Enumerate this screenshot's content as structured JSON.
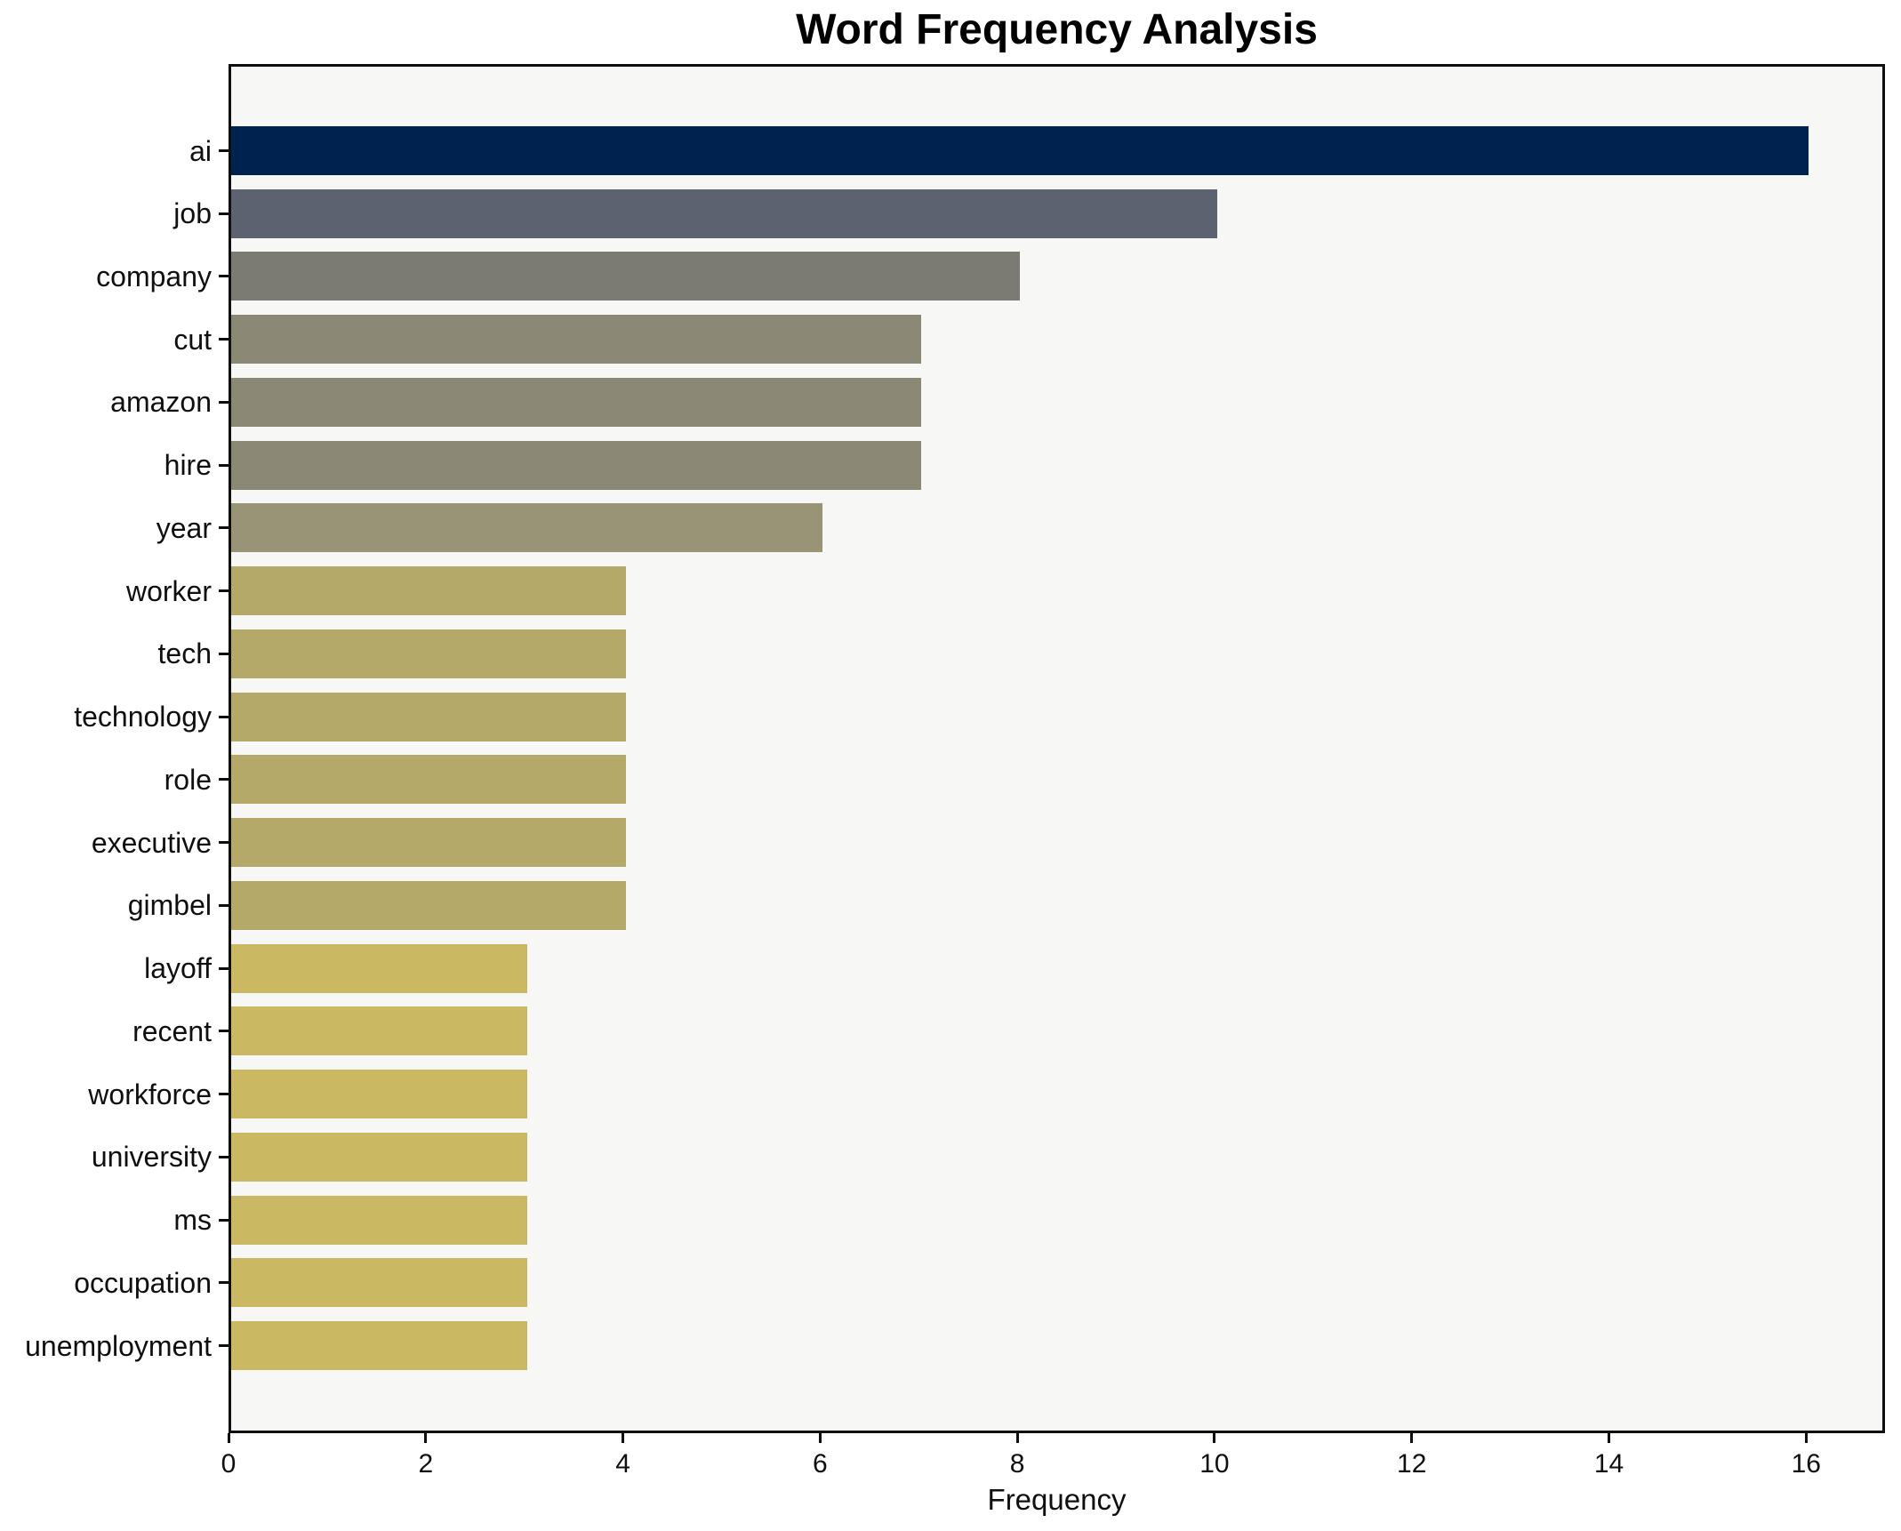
{
  "chart_data": {
    "type": "bar",
    "orientation": "horizontal",
    "title": "Word Frequency Analysis",
    "xlabel": "Frequency",
    "ylabel": "",
    "categories": [
      "ai",
      "job",
      "company",
      "cut",
      "amazon",
      "hire",
      "year",
      "worker",
      "tech",
      "technology",
      "role",
      "executive",
      "gimbel",
      "layoff",
      "recent",
      "workforce",
      "university",
      "ms",
      "occupation",
      "unemployment"
    ],
    "values": [
      16,
      10,
      8,
      7,
      7,
      7,
      6,
      4,
      4,
      4,
      4,
      4,
      4,
      3,
      3,
      3,
      3,
      3,
      3,
      3
    ],
    "bar_colors": [
      "#00224e",
      "#5c6270",
      "#7c7b73",
      "#8b8876",
      "#8b8876",
      "#8b8876",
      "#999475",
      "#b5a96a",
      "#b5a96a",
      "#b5a96a",
      "#b5a96a",
      "#b5a96a",
      "#b5a96a",
      "#cbb862",
      "#cbb862",
      "#cbb862",
      "#cbb862",
      "#cbb862",
      "#cbb862",
      "#cbb862"
    ],
    "xlim": [
      0,
      16.8
    ],
    "x_ticks": [
      0,
      2,
      4,
      6,
      8,
      10,
      12,
      14,
      16
    ],
    "grid": false,
    "legend": null,
    "plot_bg": "#f7f7f6",
    "figure_bg": "#ffffff",
    "spine_color": "#0f0f0f"
  }
}
